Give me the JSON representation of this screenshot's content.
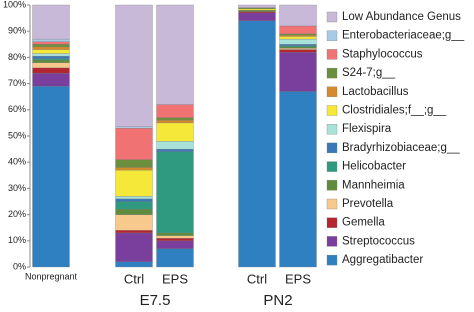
{
  "chart_data": {
    "type": "stacked_bar",
    "categories": [
      "Nonpregnant",
      "Ctrl",
      "EPS",
      "Ctrl",
      "EPS"
    ],
    "group_labels": [
      "E7.5",
      "PN2"
    ],
    "ylim": [
      0,
      100
    ],
    "yticks": [
      {
        "value": 0,
        "label": "0%"
      },
      {
        "value": 10,
        "label": "10%"
      },
      {
        "value": 20,
        "label": "20%"
      },
      {
        "value": 30,
        "label": "30%"
      },
      {
        "value": 40,
        "label": "40%"
      },
      {
        "value": 50,
        "label": "50%"
      },
      {
        "value": 60,
        "label": "60%"
      },
      {
        "value": 70,
        "label": "70%"
      },
      {
        "value": 80,
        "label": "80%"
      },
      {
        "value": 90,
        "label": "90%"
      },
      {
        "value": 100,
        "label": "100%"
      }
    ],
    "series": [
      {
        "name": "Aggregatibacter",
        "color": "#2f80c0",
        "values": [
          69,
          2,
          7,
          94,
          67
        ]
      },
      {
        "name": "Streptococcus",
        "color": "#7a3f9c",
        "values": [
          5,
          11,
          3,
          3,
          15
        ]
      },
      {
        "name": "Gemella",
        "color": "#b32630",
        "values": [
          2,
          1,
          1,
          0.5,
          1
        ]
      },
      {
        "name": "Prevotella",
        "color": "#f8c98c",
        "values": [
          2,
          6,
          1,
          0,
          0.5
        ]
      },
      {
        "name": "Mannheimia",
        "color": "#5e8b3c",
        "values": [
          1,
          2,
          1,
          0.5,
          0.5
        ]
      },
      {
        "name": "Helicobacter",
        "color": "#2f9a80",
        "values": [
          0.5,
          3,
          31,
          0,
          0.5
        ]
      },
      {
        "name": "Bradyrhizobiaceae;g__",
        "color": "#3a78b8",
        "values": [
          1,
          1,
          1,
          0,
          0.5
        ]
      },
      {
        "name": "Flexispira",
        "color": "#a9e2d8",
        "values": [
          1,
          1,
          3,
          0,
          2
        ]
      },
      {
        "name": "Clostridiales;f__;g__",
        "color": "#f6e838",
        "values": [
          1.5,
          10,
          7,
          0.5,
          1
        ]
      },
      {
        "name": "Lactobacillus",
        "color": "#d58b2c",
        "values": [
          1,
          1,
          1,
          0,
          0.5
        ]
      },
      {
        "name": "S24-7;g__",
        "color": "#6b8f3c",
        "values": [
          1,
          3,
          1,
          0.5,
          0.5
        ]
      },
      {
        "name": "Staphylococcus",
        "color": "#f07272",
        "values": [
          1,
          12,
          5,
          0,
          3
        ]
      },
      {
        "name": "Enterobacteriaceae;g__",
        "color": "#a9c9e8",
        "values": [
          1,
          0.5,
          0,
          0,
          0
        ]
      },
      {
        "name": "Low Abundance Genus",
        "color": "#c9b9d9",
        "values": [
          13,
          46.5,
          38,
          1,
          8
        ]
      }
    ]
  }
}
